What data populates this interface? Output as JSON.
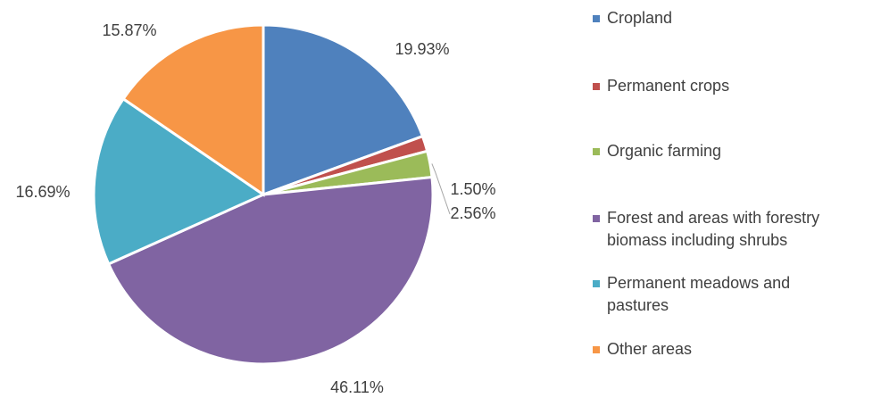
{
  "chart_data": {
    "type": "pie",
    "categories": [
      "Cropland",
      "Permanent crops",
      "Organic farming",
      "Forest and areas with forestry biomass including shrubs",
      "Permanent meadows and pastures",
      "Other areas"
    ],
    "values": [
      19.93,
      1.5,
      2.56,
      46.11,
      16.69,
      15.87
    ],
    "value_labels": [
      "19.93%",
      "1.50%",
      "2.56%",
      "46.11%",
      "16.69%",
      "15.87%"
    ],
    "colors": [
      "#4f81bd",
      "#c0504d",
      "#9bbb59",
      "#8064a2",
      "#4bacc6",
      "#f79646"
    ],
    "legend": "right"
  }
}
